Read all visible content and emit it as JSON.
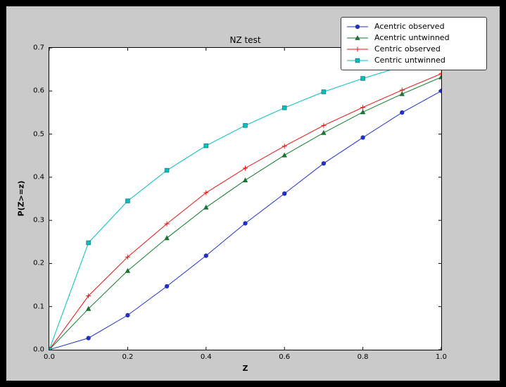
{
  "figure": {
    "background": "#000000",
    "canvas_color": "#cacaca",
    "plot_background": "#ffffff",
    "axis_color": "#000000"
  },
  "chart_data": {
    "type": "line",
    "title": "NZ test",
    "xlabel": "Z",
    "ylabel": "P(Z>=z)",
    "xlim": [
      0.0,
      1.0
    ],
    "ylim": [
      0.0,
      0.7
    ],
    "xticks": [
      "0.0",
      "0.2",
      "0.4",
      "0.6",
      "0.8",
      "1.0"
    ],
    "yticks": [
      "0.0",
      "0.1",
      "0.2",
      "0.3",
      "0.4",
      "0.5",
      "0.6",
      "0.7"
    ],
    "grid": false,
    "legend_position": "upper right",
    "x": [
      0.0,
      0.1,
      0.2,
      0.3,
      0.4,
      0.5,
      0.6,
      0.7,
      0.8,
      0.9,
      1.0
    ],
    "series": [
      {
        "name": "Acentric observed",
        "color": "#2030cf",
        "marker": "circle",
        "values": [
          0.0,
          0.027,
          0.08,
          0.147,
          0.218,
          0.293,
          0.362,
          0.432,
          0.492,
          0.55,
          0.6
        ]
      },
      {
        "name": "Acentric untwinned",
        "color": "#0e7d2a",
        "marker": "triangle",
        "values": [
          0.0,
          0.095,
          0.183,
          0.259,
          0.33,
          0.393,
          0.451,
          0.503,
          0.551,
          0.593,
          0.632
        ]
      },
      {
        "name": "Centric observed",
        "color": "#e8130c",
        "marker": "plus",
        "values": [
          0.0,
          0.125,
          0.215,
          0.292,
          0.364,
          0.421,
          0.472,
          0.52,
          0.562,
          0.602,
          0.64
        ]
      },
      {
        "name": "Centric untwinned",
        "color": "#00bfbf",
        "marker": "square",
        "values": [
          0.0,
          0.248,
          0.345,
          0.416,
          0.473,
          0.52,
          0.561,
          0.598,
          0.629,
          0.657,
          0.683
        ]
      }
    ]
  }
}
